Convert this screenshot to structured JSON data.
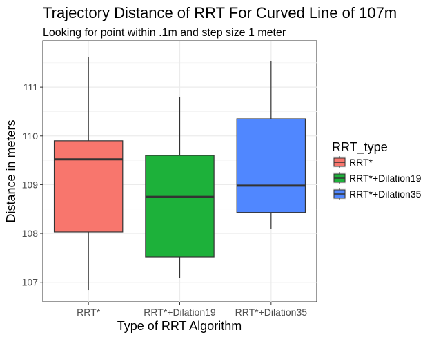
{
  "chart_data": {
    "type": "box",
    "title": "Trajectory Distance of RRT For Curved Line of 107m",
    "subtitle": "Looking for point within .1m and step size 1 meter",
    "xlabel": "Type of RRT Algorithm",
    "ylabel": "Distance in meters",
    "ylim": [
      106.6,
      111.95
    ],
    "yticks": [
      107,
      108,
      109,
      110,
      111
    ],
    "grid": true,
    "legend": {
      "title": "RRT_type",
      "placement": "right"
    },
    "categories": [
      "RRT*",
      "RRT*+Dilation19",
      "RRT*+Dilation35"
    ],
    "series": [
      {
        "name": "RRT*",
        "color": "#F8766D",
        "min": 106.84,
        "q1": 108.03,
        "median": 109.52,
        "q3": 109.9,
        "max": 111.62
      },
      {
        "name": "RRT*+Dilation19",
        "color": "#1DB13A",
        "min": 107.09,
        "q1": 107.52,
        "median": 108.75,
        "q3": 109.6,
        "max": 110.8
      },
      {
        "name": "RRT*+Dilation35",
        "color": "#5087FF",
        "min": 108.1,
        "q1": 108.43,
        "median": 108.98,
        "q3": 110.35,
        "max": 111.53
      }
    ]
  }
}
